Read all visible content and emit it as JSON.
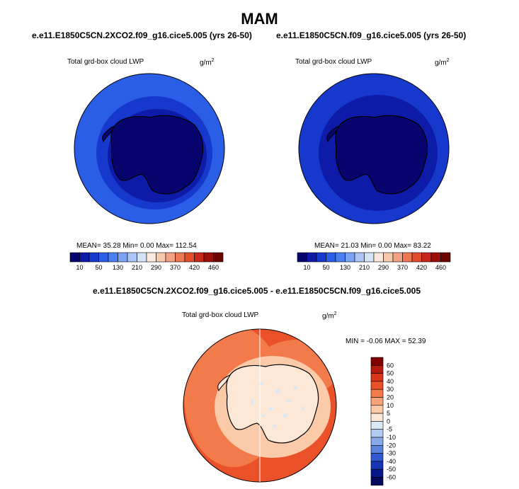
{
  "figure": {
    "title": "MAM",
    "left_panel": {
      "case": "e.e11.E1850C5CN.2XCO2.f09_g16.cice5.005 (yrs 26-50)",
      "variable": "Total grd-box cloud LWP",
      "units": "g/m",
      "units_exp": "2",
      "stats": "MEAN=  35.28  Min=   0.00  Max= 112.54"
    },
    "right_panel": {
      "case": "e.e11.E1850C5CN.f09_g16.cice5.005 (yrs 26-50)",
      "variable": "Total grd-box cloud LWP",
      "units": "g/m",
      "units_exp": "2",
      "stats": "MEAN=  21.03  Min=   0.00  Max=  83.22"
    },
    "diff_panel": {
      "case": "e.e11.E1850C5CN.2XCO2.f09_g16.cice5.005 - e.e11.E1850C5CN.f09_g16.cice5.005",
      "variable": "Total grd-box cloud LWP",
      "units": "g/m",
      "units_exp": "2",
      "stats": "MIN =  -0.06 MAX =  52.39"
    }
  },
  "colorbars": {
    "levels": {
      "labels": [
        "10",
        "50",
        "130",
        "210",
        "290",
        "370",
        "420",
        "460"
      ],
      "colors": [
        "#08046e",
        "#0d1ba8",
        "#1638cc",
        "#2a5ee6",
        "#4a80ef",
        "#7aa3f2",
        "#a9c4f5",
        "#d5e3f7",
        "#fce9dd",
        "#f8c8ae",
        "#f3a183",
        "#ec7853",
        "#e24e2b",
        "#c8261b",
        "#9a1008",
        "#6b0602"
      ]
    },
    "diff": {
      "labels": [
        "60",
        "50",
        "40",
        "30",
        "20",
        "10",
        "5",
        "0",
        "-5",
        "-10",
        "-20",
        "-30",
        "-40",
        "-50",
        "-60"
      ],
      "colors": [
        "#7f0000",
        "#b51b0c",
        "#d7361a",
        "#ea5128",
        "#f37a4a",
        "#f8a477",
        "#fbcaa9",
        "#fde8d8",
        "#dce8f6",
        "#b3cbef",
        "#89a9e8",
        "#5b83dc",
        "#3159cf",
        "#1634b5",
        "#06178a",
        "#020a5e"
      ]
    }
  },
  "map_colors": {
    "ocean_outer_left": "#2a5ee6",
    "ocean_mid_left": "#1638cc",
    "ocean_inner_left": "#0d1ba8",
    "ice_left": "#08046e",
    "ocean_outer_right": "#1638cc",
    "ocean_mid_right": "#0d1ba8",
    "ice_right": "#08046e",
    "diff_outer": "#ea5128",
    "diff_mid": "#f37a4a",
    "diff_ring": "#fbcaa9",
    "diff_ice": "#fde8d8",
    "diff_speck": "#dce8f6"
  }
}
